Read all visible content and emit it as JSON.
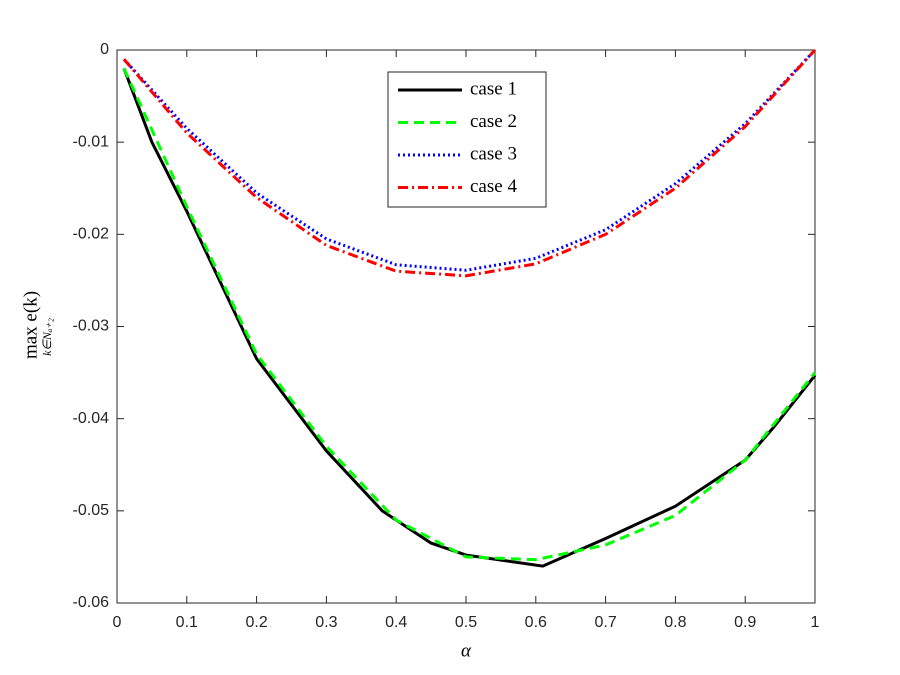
{
  "chart_data": {
    "type": "line",
    "xlabel": "α",
    "ylabel": "max e(k)",
    "ylabel_sub": "k∈Nₐ₊₂",
    "xlim": [
      0,
      1
    ],
    "ylim": [
      -0.06,
      0
    ],
    "xticks": [
      0,
      0.1,
      0.2,
      0.3,
      0.4,
      0.5,
      0.6,
      0.7,
      0.8,
      0.9,
      1
    ],
    "yticks": [
      0,
      -0.01,
      -0.02,
      -0.03,
      -0.04,
      -0.05,
      -0.06
    ],
    "grid": false,
    "legend": "north",
    "series": [
      {
        "name": "case 1",
        "color": "#000000",
        "style": "solid",
        "x": [
          0.01,
          0.05,
          0.1,
          0.2,
          0.3,
          0.38,
          0.45,
          0.5,
          0.61,
          0.7,
          0.8,
          0.9,
          0.94,
          1
        ],
        "values": [
          -0.002,
          -0.01,
          -0.0175,
          -0.0335,
          -0.0435,
          -0.05,
          -0.0535,
          -0.0548,
          -0.056,
          -0.053,
          -0.0495,
          -0.0445,
          -0.041,
          -0.0353
        ]
      },
      {
        "name": "case 2",
        "color": "#00ff00",
        "style": "dashed",
        "x": [
          0.01,
          0.1,
          0.2,
          0.3,
          0.4,
          0.5,
          0.6,
          0.7,
          0.8,
          0.9,
          1
        ],
        "values": [
          -0.002,
          -0.017,
          -0.033,
          -0.043,
          -0.051,
          -0.055,
          -0.0553,
          -0.0537,
          -0.0505,
          -0.0445,
          -0.035
        ]
      },
      {
        "name": "case 3",
        "color": "#0000ff",
        "style": "dotted",
        "x": [
          0.01,
          0.1,
          0.2,
          0.3,
          0.4,
          0.5,
          0.6,
          0.7,
          0.8,
          0.9,
          1
        ],
        "values": [
          -0.001,
          -0.0085,
          -0.0155,
          -0.0205,
          -0.0233,
          -0.0239,
          -0.0226,
          -0.0195,
          -0.0145,
          -0.008,
          0
        ]
      },
      {
        "name": "case 4",
        "color": "#ff0000",
        "style": "dashdot",
        "x": [
          0.01,
          0.1,
          0.2,
          0.3,
          0.4,
          0.5,
          0.6,
          0.7,
          0.8,
          0.9,
          1
        ],
        "values": [
          -0.001,
          -0.009,
          -0.016,
          -0.0212,
          -0.024,
          -0.0245,
          -0.0232,
          -0.02,
          -0.015,
          -0.0083,
          0
        ]
      }
    ]
  }
}
